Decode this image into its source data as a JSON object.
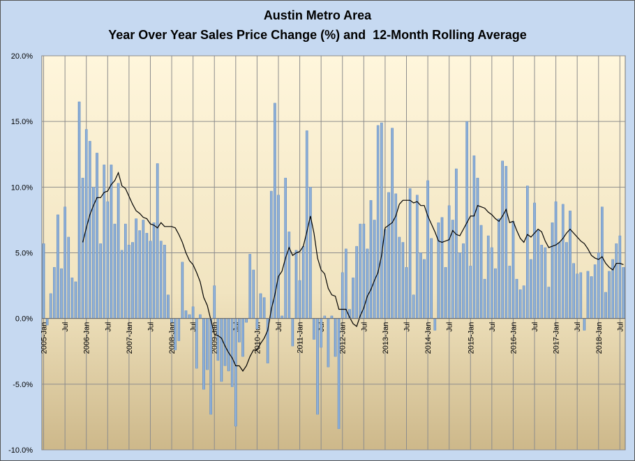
{
  "chart_data": {
    "type": "bar-line",
    "title": [
      "Austin Metro Area",
      "Year Over Year Sales Price Change (%) and  12-Month Rolling Average"
    ],
    "categories": [
      "2005-Jan",
      null,
      null,
      null,
      null,
      null,
      "Jul",
      null,
      null,
      null,
      null,
      null,
      "2006-Jan",
      null,
      null,
      null,
      null,
      null,
      "Jul",
      null,
      null,
      null,
      null,
      null,
      "2007-Jan",
      null,
      null,
      null,
      null,
      null,
      "Jul",
      null,
      null,
      null,
      null,
      null,
      "2008-Jan",
      null,
      null,
      null,
      null,
      null,
      "Jul",
      null,
      null,
      null,
      null,
      null,
      "2009-Jan",
      null,
      null,
      null,
      null,
      null,
      "Jul",
      null,
      null,
      null,
      null,
      null,
      "2010-Jan",
      null,
      null,
      null,
      null,
      null,
      "Jul",
      null,
      null,
      null,
      null,
      null,
      "2011-Jan",
      null,
      null,
      null,
      null,
      null,
      "Jul",
      null,
      null,
      null,
      null,
      null,
      "2012-Jan",
      null,
      null,
      null,
      null,
      null,
      "Jul",
      null,
      null,
      null,
      null,
      null,
      "2013-Jan",
      null,
      null,
      null,
      null,
      null,
      "Jul",
      null,
      null,
      null,
      null,
      null,
      "2014-Jan",
      null,
      null,
      null,
      null,
      null,
      "Jul",
      null,
      null,
      null,
      null,
      null,
      "2015-Jan",
      null,
      null,
      null,
      null,
      null,
      "Jul",
      null,
      null,
      null,
      null,
      null,
      "2016-Jan",
      null,
      null,
      null,
      null,
      null,
      "Jul",
      null,
      null,
      null,
      null,
      null,
      "2017-Jan",
      null,
      null,
      null,
      null,
      null,
      "Jul",
      null,
      null,
      null,
      null,
      null,
      "2018-Jan",
      null,
      null,
      null,
      null,
      null,
      "Jul",
      null
    ],
    "series": [
      {
        "type": "bar",
        "color": "#6f97c9",
        "values": [
          5.7,
          -0.5,
          1.9,
          3.9,
          7.9,
          3.8,
          8.5,
          6.2,
          3.1,
          2.8,
          16.5,
          10.7,
          14.4,
          13.5,
          10.0,
          12.6,
          5.7,
          11.7,
          8.9,
          11.7,
          7.2,
          10.3,
          5.2,
          7.2,
          5.6,
          5.8,
          7.6,
          6.7,
          7.5,
          6.5,
          5.9,
          7.3,
          11.8,
          5.9,
          5.6,
          1.8,
          -0.3,
          -2.4,
          -1.7,
          4.3,
          0.6,
          0.3,
          0.9,
          -3.8,
          0.3,
          -5.4,
          -3.9,
          -7.3,
          2.5,
          -3.2,
          -4.8,
          -3.6,
          -4.0,
          -5.2,
          -8.2,
          -1.8,
          -2.9,
          -0.3,
          4.9,
          3.7,
          -0.8,
          1.9,
          1.6,
          -3.4,
          9.7,
          16.4,
          9.4,
          0.2,
          10.7,
          6.6,
          -2.1,
          5.2,
          2.9,
          5.5,
          14.3,
          10.0,
          -1.6,
          -7.3,
          -2.2,
          0.2,
          -3.7,
          0.2,
          -2.9,
          -8.4,
          3.5,
          5.3,
          0.7,
          3.1,
          5.5,
          7.2,
          7.2,
          5.3,
          9.0,
          7.5,
          14.7,
          14.9,
          6.8,
          9.6,
          14.5,
          9.5,
          6.2,
          5.8,
          3.9,
          9.9,
          1.8,
          9.4,
          5.0,
          4.5,
          10.5,
          6.1,
          -0.9,
          7.3,
          7.7,
          3.9,
          8.6,
          7.5,
          11.4,
          5.0,
          5.7,
          15.0,
          4.0,
          12.4,
          10.7,
          7.1,
          3.0,
          6.3,
          5.4,
          3.8,
          7.6,
          12.0,
          11.6,
          4.0,
          7.4,
          3.0,
          2.2,
          2.5,
          10.1,
          4.5,
          8.8,
          6.7,
          5.6,
          5.4,
          2.4,
          7.3,
          8.9,
          5.8,
          8.7,
          5.8,
          8.2,
          4.2,
          3.4,
          3.5,
          -0.9,
          3.6,
          3.2,
          4.1,
          5.0,
          8.5,
          2.0,
          3.6,
          4.5,
          5.7,
          6.3,
          3.9
        ]
      },
      {
        "type": "line",
        "color": "#000000",
        "values": [
          null,
          null,
          null,
          null,
          null,
          null,
          null,
          null,
          null,
          null,
          null,
          5.8,
          6.9,
          7.9,
          8.6,
          9.2,
          9.2,
          9.6,
          9.7,
          10.2,
          10.5,
          11.1,
          10.1,
          9.9,
          9.3,
          8.7,
          8.2,
          8.0,
          7.7,
          7.6,
          7.2,
          7.1,
          6.9,
          7.3,
          7.0,
          7.0,
          7.0,
          6.9,
          6.4,
          5.8,
          5.0,
          4.4,
          4.1,
          3.5,
          2.8,
          1.6,
          1.0,
          -0.1,
          -1.2,
          -1.3,
          -1.5,
          -2.1,
          -2.6,
          -3.0,
          -3.6,
          -3.6,
          -4.0,
          -3.6,
          -2.9,
          -2.4,
          -2.4,
          -1.9,
          -1.5,
          -0.9,
          0.7,
          1.8,
          3.2,
          3.6,
          4.6,
          5.4,
          4.8,
          5.0,
          5.1,
          5.5,
          6.6,
          7.8,
          6.5,
          4.6,
          3.7,
          3.4,
          2.3,
          1.8,
          1.7,
          0.7,
          0.7,
          0.7,
          0.1,
          -0.4,
          -0.6,
          0.2,
          0.8,
          1.7,
          2.2,
          2.9,
          3.5,
          4.8,
          6.9,
          7.1,
          7.3,
          7.8,
          8.7,
          9.0,
          9.0,
          9.0,
          8.8,
          8.9,
          8.6,
          8.6,
          7.8,
          7.2,
          6.6,
          5.9,
          5.8,
          5.9,
          6.0,
          6.7,
          6.4,
          6.3,
          6.8,
          7.3,
          7.8,
          7.8,
          8.6,
          8.5,
          8.4,
          8.1,
          7.9,
          7.6,
          7.4,
          7.8,
          8.3,
          7.3,
          7.4,
          6.7,
          6.1,
          5.8,
          6.4,
          6.2,
          6.5,
          6.8,
          6.6,
          5.9,
          5.4,
          5.5,
          5.6,
          5.8,
          6.1,
          6.5,
          6.8,
          6.5,
          6.2,
          5.9,
          5.7,
          5.3,
          4.8,
          4.6,
          4.5,
          4.7,
          4.2,
          3.9,
          3.7,
          4.2,
          4.2,
          4.1
        ]
      }
    ],
    "ylim": [
      -10,
      20
    ],
    "yticks": [
      {
        "value": -10,
        "label": "-10.0%"
      },
      {
        "value": -5,
        "label": "-5.0%"
      },
      {
        "value": 0,
        "label": "0.0%"
      },
      {
        "value": 5,
        "label": "5.0%"
      },
      {
        "value": 10,
        "label": "10.0%"
      },
      {
        "value": 15,
        "label": "15.0%"
      },
      {
        "value": 20,
        "label": "20.0%"
      }
    ],
    "grid": true
  }
}
